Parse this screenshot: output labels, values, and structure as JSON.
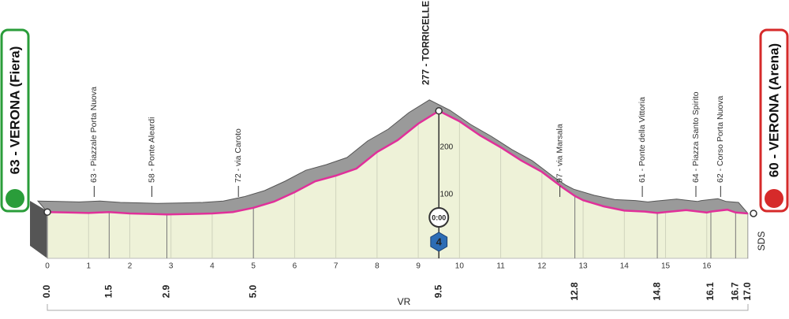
{
  "chart_data": {
    "type": "area",
    "start_label": "63 - VERONA (Fiera)",
    "finish_label": "60 - VERONA (Arena)",
    "summit": {
      "x": 9.5,
      "label": "277 - TORRICELLE"
    },
    "x": [
      0,
      0.5,
      1,
      1.5,
      2,
      2.5,
      2.9,
      3.5,
      4,
      4.5,
      5,
      5.5,
      6,
      6.5,
      7,
      7.5,
      8,
      8.5,
      9,
      9.5,
      10,
      10.5,
      11,
      11.5,
      12,
      12.5,
      12.8,
      13,
      13.5,
      14,
      14.5,
      14.8,
      15,
      15.5,
      16,
      16.1,
      16.5,
      16.7,
      17
    ],
    "values": [
      63,
      62,
      61,
      63,
      60,
      59,
      58,
      59,
      60,
      63,
      72,
      85,
      105,
      128,
      140,
      155,
      190,
      215,
      250,
      277,
      255,
      225,
      200,
      172,
      148,
      115,
      97,
      88,
      75,
      66,
      64,
      61,
      63,
      67,
      62,
      64,
      68,
      62,
      60
    ],
    "xlim": [
      0,
      17
    ],
    "ylim": [
      0,
      300
    ],
    "xticks": [
      0,
      1,
      2,
      3,
      4,
      5,
      6,
      7,
      8,
      9,
      10,
      11,
      12,
      13,
      14,
      15,
      16
    ],
    "yticks": [
      100,
      200
    ],
    "key_distances": [
      {
        "value": 0,
        "label": "0.0"
      },
      {
        "value": 1.5,
        "label": "1.5"
      },
      {
        "value": 2.9,
        "label": "2.9"
      },
      {
        "value": 5,
        "label": "5.0"
      },
      {
        "value": 9.5,
        "label": "9.5"
      },
      {
        "value": 12.8,
        "label": "12.8"
      },
      {
        "value": 14.8,
        "label": "14.8"
      },
      {
        "value": 16.1,
        "label": "16.1"
      },
      {
        "value": 16.7,
        "label": "16.7"
      },
      {
        "value": 17,
        "label": "17.0"
      }
    ],
    "waypoints": [
      {
        "x": 1.5,
        "label": "63 - Piazzale Porta Nuova"
      },
      {
        "x": 2.9,
        "label": "58 - Ponte Aleardi"
      },
      {
        "x": 5,
        "label": "72 - via Caroto"
      },
      {
        "x": 12.8,
        "label": "97 - via Marsala"
      },
      {
        "x": 14.8,
        "label": "61 - Ponte della Vittoria"
      },
      {
        "x": 16.1,
        "label": "64 - Piazza Santo Spirito"
      },
      {
        "x": 16.7,
        "label": "62 - Corso Porta Nuova"
      }
    ],
    "time_label": "0:00",
    "climb_category": "4",
    "color": "#e0309a",
    "fill": "#eef2d8",
    "band_color": "#9a9a9a",
    "footer_label": "VR",
    "side_label": "SDS"
  }
}
